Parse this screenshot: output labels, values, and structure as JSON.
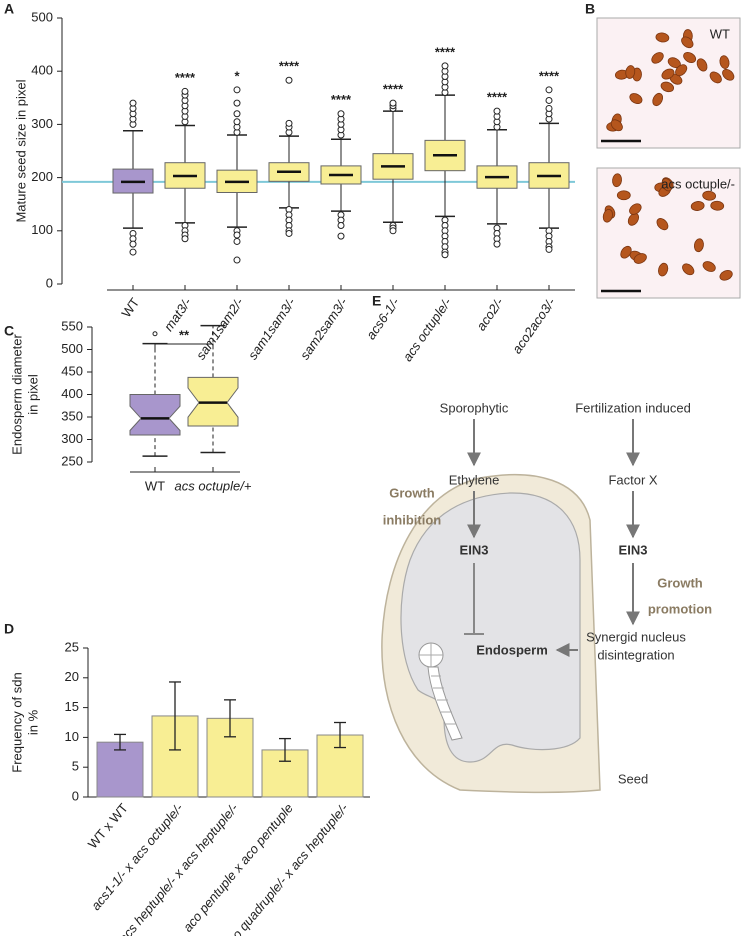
{
  "panel_labels": [
    "A",
    "B",
    "C",
    "D",
    "E"
  ],
  "chart_data": [
    {
      "type": "boxplot",
      "ylabel": "Mature seed size in pixel",
      "categories": [
        "WT",
        "mat3/-",
        "sam1sam2/-",
        "sam1sam3/-",
        "sam2sam3/-",
        "acs6-1/-",
        "acs octuple/-",
        "aco2/-",
        "aco2aco3/-"
      ],
      "boxes": [
        {
          "color": "#a896cc",
          "whislo": 105,
          "q1": 171,
          "median": 192,
          "q3": 216,
          "whishi": 288,
          "outliers": [
            300,
            310,
            320,
            330,
            340,
            95,
            85,
            75,
            60
          ]
        },
        {
          "color": "#f8ee94",
          "whislo": 115,
          "q1": 180,
          "median": 203,
          "q3": 228,
          "whishi": 298,
          "outliers": [
            305,
            315,
            325,
            335,
            345,
            355,
            362,
            110,
            100,
            92,
            85
          ]
        },
        {
          "color": "#f8ee94",
          "whislo": 107,
          "q1": 172,
          "median": 192,
          "q3": 214,
          "whishi": 280,
          "outliers": [
            285,
            295,
            305,
            320,
            340,
            365,
            100,
            92,
            80,
            45
          ]
        },
        {
          "color": "#f8ee94",
          "whislo": 143,
          "q1": 193,
          "median": 211,
          "q3": 228,
          "whishi": 278,
          "outliers": [
            285,
            295,
            302,
            383,
            140,
            130,
            120,
            110,
            100,
            95
          ]
        },
        {
          "color": "#f8ee94",
          "whislo": 137,
          "q1": 188,
          "median": 205,
          "q3": 222,
          "whishi": 272,
          "outliers": [
            280,
            290,
            300,
            310,
            320,
            130,
            120,
            110,
            90
          ]
        },
        {
          "color": "#f8ee94",
          "whislo": 116,
          "q1": 197,
          "median": 221,
          "q3": 245,
          "whishi": 325,
          "outliers": [
            330,
            335,
            340,
            110,
            105,
            100
          ]
        },
        {
          "color": "#f8ee94",
          "whislo": 127,
          "q1": 213,
          "median": 242,
          "q3": 270,
          "whishi": 355,
          "outliers": [
            360,
            370,
            380,
            390,
            400,
            410,
            120,
            110,
            100,
            90,
            80,
            70,
            60,
            55
          ]
        },
        {
          "color": "#f8ee94",
          "whislo": 113,
          "q1": 180,
          "median": 201,
          "q3": 222,
          "whishi": 290,
          "outliers": [
            295,
            305,
            315,
            325,
            105,
            95,
            85,
            75
          ]
        },
        {
          "color": "#f8ee94",
          "whislo": 105,
          "q1": 180,
          "median": 203,
          "q3": 228,
          "whishi": 302,
          "outliers": [
            310,
            320,
            330,
            345,
            365,
            100,
            90,
            80,
            70,
            65
          ]
        }
      ],
      "significance": [
        null,
        "****",
        "*",
        "****",
        "****",
        "****",
        "****",
        "****",
        "****"
      ],
      "reference_line": 192,
      "reference_color": "#7ec8d8",
      "ylim": [
        0,
        500
      ],
      "yticks": [
        0,
        100,
        200,
        300,
        400,
        500
      ]
    },
    {
      "type": "boxplot",
      "ylabel": [
        "Endosperm diameter",
        "in pixel"
      ],
      "categories": [
        "WT",
        "acs octuple/+"
      ],
      "boxes": [
        {
          "color": "#a896cc",
          "whislo": 263,
          "q1": 310,
          "median": 347,
          "q3": 400,
          "whishi": 513,
          "outliers": [
            535
          ]
        },
        {
          "color": "#f8ee94",
          "whislo": 271,
          "q1": 330,
          "median": 382,
          "q3": 438,
          "whishi": 553,
          "outliers": []
        }
      ],
      "bracket_significance": "**",
      "ylim": [
        250,
        550
      ],
      "yticks": [
        250,
        300,
        350,
        400,
        450,
        500,
        550
      ]
    },
    {
      "type": "bar",
      "ylabel": [
        "Frequency of sdn",
        "in %"
      ],
      "categories": [
        "WT x WT",
        "acs1-1/- x acs octuple/-",
        "acs heptuple/- x acs heptuple/-",
        "aco pentuple x aco pentuple",
        "aco quadruple/- x acs heptuple/-"
      ],
      "values": [
        9.2,
        13.6,
        13.2,
        7.9,
        10.4
      ],
      "errors": [
        1.3,
        5.7,
        3.1,
        1.9,
        2.1
      ],
      "colors": [
        "#a896cc",
        "#f8ee94",
        "#f8ee94",
        "#f8ee94",
        "#f8ee94"
      ],
      "ylim": [
        0,
        25
      ],
      "yticks": [
        0,
        5,
        10,
        15,
        20,
        25
      ]
    }
  ],
  "images": [
    {
      "label": "WT"
    },
    {
      "label": "acs octuple/-"
    }
  ],
  "diagram": {
    "sporophytic": "Sporophytic",
    "fertilization": "Fertilization induced",
    "ethylene": "Ethylene",
    "factor_x": "Factor X",
    "ein3_left": "EIN3",
    "ein3_right": "EIN3",
    "growth_inhibition": [
      "Growth",
      "inhibition"
    ],
    "growth_promotion": [
      "Growth",
      "promotion"
    ],
    "synergid": [
      "Synergid nucleus",
      "disintegration"
    ],
    "endosperm": "Endosperm",
    "seed": "Seed"
  }
}
